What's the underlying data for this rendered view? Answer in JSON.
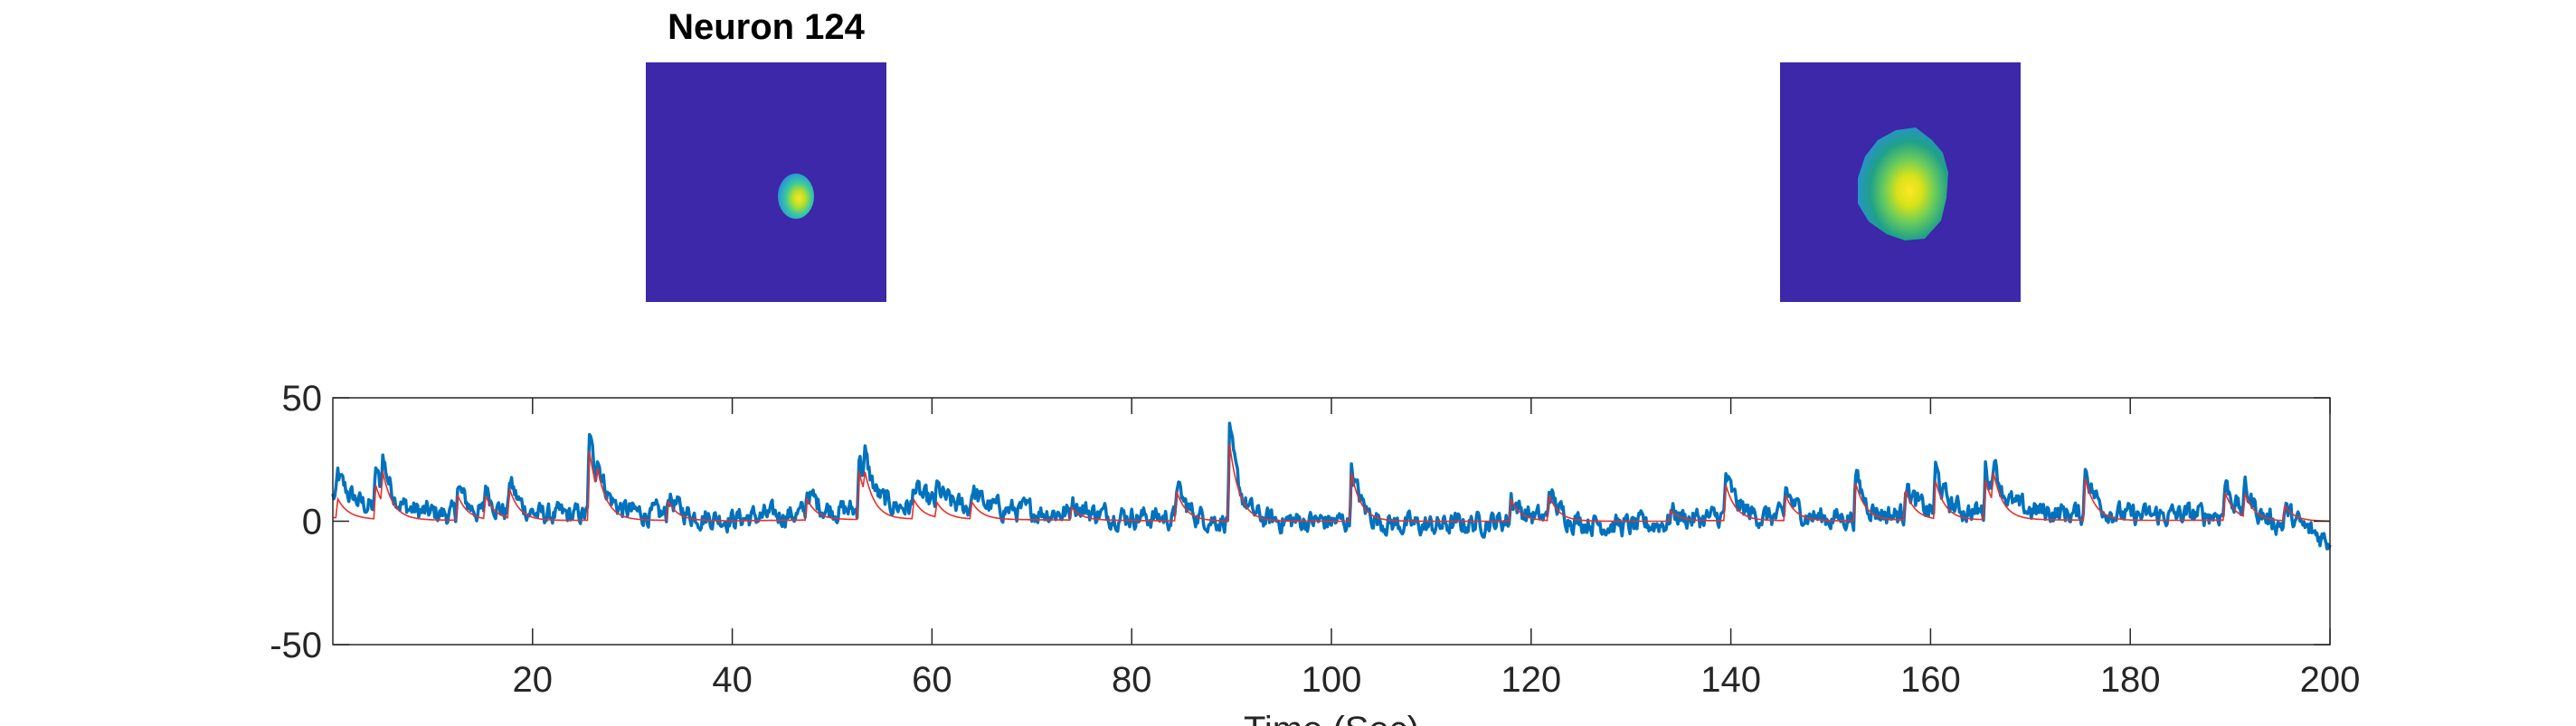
{
  "figure": {
    "title": "Neuron 124",
    "panel_colors": {
      "background": "#3c28a8",
      "low": "#2a8ee0",
      "mid": "#37c9a0",
      "high": "#fde725"
    }
  },
  "chart_data": {
    "type": "line",
    "xlabel": "Time (Sec)",
    "ylabel": "",
    "xlim": [
      0,
      200
    ],
    "ylim": [
      -50,
      50
    ],
    "x_ticks": [
      20,
      40,
      60,
      80,
      100,
      120,
      140,
      160,
      180,
      200
    ],
    "y_ticks": [
      50,
      0,
      -50
    ],
    "x_tick_labels": [
      "20",
      "40",
      "60",
      "80",
      "100",
      "120",
      "140",
      "160",
      "180",
      "200"
    ],
    "y_tick_labels": [
      "50",
      "0",
      "-50"
    ],
    "grid": false,
    "legend": "none",
    "noise_amplitude": 4.5,
    "series": [
      {
        "color": "#0072bd",
        "role": "raw"
      },
      {
        "color": "#e8302a",
        "role": "fit"
      }
    ],
    "baseline": [
      [
        0,
        10
      ],
      [
        5,
        4
      ],
      [
        10,
        3
      ],
      [
        20,
        2
      ],
      [
        30,
        3
      ],
      [
        40,
        1
      ],
      [
        50,
        4
      ],
      [
        60,
        6
      ],
      [
        70,
        4
      ],
      [
        80,
        2
      ],
      [
        90,
        0
      ],
      [
        100,
        0
      ],
      [
        110,
        -2
      ],
      [
        120,
        1
      ],
      [
        130,
        -2
      ],
      [
        140,
        2
      ],
      [
        150,
        1
      ],
      [
        160,
        3
      ],
      [
        170,
        4
      ],
      [
        180,
        2
      ],
      [
        190,
        3
      ],
      [
        197,
        -3
      ],
      [
        200,
        -8
      ]
    ],
    "events": [
      [
        0.5,
        9
      ],
      [
        4.3,
        16
      ],
      [
        5,
        15
      ],
      [
        12.5,
        12
      ],
      [
        15.3,
        11
      ],
      [
        17.7,
        14
      ],
      [
        25.7,
        33
      ],
      [
        26.5,
        10
      ],
      [
        33.6,
        9
      ],
      [
        47.5,
        10
      ],
      [
        52.7,
        23
      ],
      [
        53.3,
        10
      ],
      [
        58.2,
        9
      ],
      [
        60.5,
        7
      ],
      [
        64,
        8
      ],
      [
        74,
        6
      ],
      [
        84.5,
        14
      ],
      [
        89.8,
        37
      ],
      [
        102,
        23
      ],
      [
        118,
        10
      ],
      [
        121.8,
        12
      ],
      [
        134,
        5
      ],
      [
        139.5,
        17
      ],
      [
        145.5,
        12
      ],
      [
        152.5,
        18
      ],
      [
        157.5,
        14
      ],
      [
        160.5,
        18
      ],
      [
        165.5,
        19
      ],
      [
        166.3,
        14
      ],
      [
        175.5,
        20
      ],
      [
        189.5,
        13
      ],
      [
        191.5,
        11
      ],
      [
        195.5,
        7
      ]
    ]
  }
}
